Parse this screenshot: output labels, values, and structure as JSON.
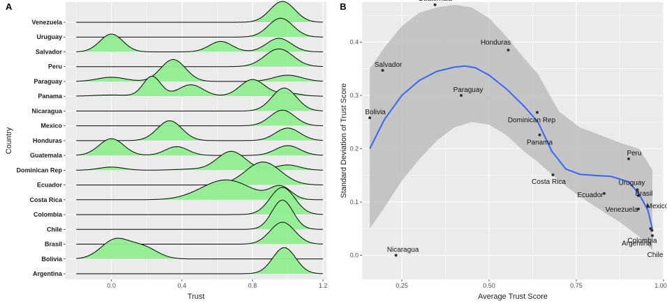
{
  "colors": {
    "panel_bg": "#ebebeb",
    "grid": "#ffffff",
    "ridge_fill": "#90ee90",
    "ridge_line": "#000000",
    "smooth_line": "#3366ff",
    "ribbon": "#bdbdbd",
    "point": "#333333"
  },
  "chart_data": [
    {
      "panel": "A",
      "type": "area",
      "subtype": "ridgeline",
      "xlabel": "Trust",
      "ylabel": "Country",
      "xlim": [
        -0.26,
        1.22
      ],
      "x_ticks": [
        0.0,
        0.4,
        0.8,
        1.2
      ],
      "x_tick_labels": [
        "0.0",
        "0.4",
        "0.8",
        "1.2"
      ],
      "support": [
        -0.2,
        1.2
      ],
      "countries": [
        {
          "name": "Venezuela",
          "peaks": [
            {
              "mu": 0.97,
              "sd": 0.07,
              "h": 1.0
            }
          ]
        },
        {
          "name": "Uruguay",
          "peaks": [
            {
              "mu": 0.96,
              "sd": 0.07,
              "h": 0.9
            }
          ]
        },
        {
          "name": "Salvador",
          "peaks": [
            {
              "mu": 0.0,
              "sd": 0.065,
              "h": 0.85
            },
            {
              "mu": 0.62,
              "sd": 0.065,
              "h": 0.5
            },
            {
              "mu": 0.95,
              "sd": 0.07,
              "h": 0.65
            }
          ]
        },
        {
          "name": "Peru",
          "peaks": [
            {
              "mu": 0.95,
              "sd": 0.08,
              "h": 0.85
            }
          ]
        },
        {
          "name": "Paraguay",
          "peaks": [
            {
              "mu": 0.0,
              "sd": 0.08,
              "h": 0.2
            },
            {
              "mu": 0.35,
              "sd": 0.07,
              "h": 1.05
            },
            {
              "mu": 1.0,
              "sd": 0.08,
              "h": 0.3
            }
          ]
        },
        {
          "name": "Panama",
          "peaks": [
            {
              "mu": 0.0,
              "sd": 0.1,
              "h": 0.06
            },
            {
              "mu": 0.23,
              "sd": 0.05,
              "h": 0.95
            },
            {
              "mu": 0.45,
              "sd": 0.07,
              "h": 0.55
            },
            {
              "mu": 0.8,
              "sd": 0.07,
              "h": 0.8
            },
            {
              "mu": 1.0,
              "sd": 0.07,
              "h": 0.15
            }
          ]
        },
        {
          "name": "Nicaragua",
          "peaks": [
            {
              "mu": 0.98,
              "sd": 0.07,
              "h": 1.1
            }
          ]
        },
        {
          "name": "Mexico",
          "peaks": [
            {
              "mu": 0.97,
              "sd": 0.07,
              "h": 0.75
            }
          ]
        },
        {
          "name": "Honduras",
          "peaks": [
            {
              "mu": 0.33,
              "sd": 0.07,
              "h": 0.95
            },
            {
              "mu": 1.0,
              "sd": 0.07,
              "h": 0.6
            }
          ]
        },
        {
          "name": "Guatemala",
          "peaks": [
            {
              "mu": 0.0,
              "sd": 0.07,
              "h": 0.8
            },
            {
              "mu": 0.37,
              "sd": 0.065,
              "h": 0.42
            },
            {
              "mu": 1.0,
              "sd": 0.07,
              "h": 0.47
            }
          ]
        },
        {
          "name": "Dominican Rep",
          "peaks": [
            {
              "mu": 0.0,
              "sd": 0.07,
              "h": 0.15
            },
            {
              "mu": 0.45,
              "sd": 0.09,
              "h": 0.05
            },
            {
              "mu": 0.68,
              "sd": 0.08,
              "h": 0.9
            },
            {
              "mu": 1.0,
              "sd": 0.07,
              "h": 0.25
            }
          ]
        },
        {
          "name": "Ecuador",
          "peaks": [
            {
              "mu": 0.86,
              "sd": 0.1,
              "h": 1.1
            }
          ]
        },
        {
          "name": "Costa Rica",
          "peaks": [
            {
              "mu": 0.65,
              "sd": 0.14,
              "h": 0.95
            },
            {
              "mu": 0.96,
              "sd": 0.06,
              "h": 0.6
            }
          ]
        },
        {
          "name": "Colombia",
          "peaks": [
            {
              "mu": 0.97,
              "sd": 0.07,
              "h": 1.3
            }
          ]
        },
        {
          "name": "Chile",
          "peaks": [
            {
              "mu": 0.97,
              "sd": 0.06,
              "h": 1.4
            }
          ]
        },
        {
          "name": "Brasil",
          "peaks": [
            {
              "mu": 0.97,
              "sd": 0.07,
              "h": 1.05
            }
          ]
        },
        {
          "name": "Bolivia",
          "peaks": [
            {
              "mu": 0.02,
              "sd": 0.08,
              "h": 0.9
            },
            {
              "mu": 0.18,
              "sd": 0.08,
              "h": 0.55
            }
          ]
        },
        {
          "name": "Argentina",
          "peaks": [
            {
              "mu": 0.98,
              "sd": 0.065,
              "h": 1.25
            }
          ]
        }
      ]
    },
    {
      "panel": "B",
      "type": "scatter",
      "xlabel": "Average Trust Score",
      "ylabel": "Standard Deviation of Trust Score",
      "xlim": [
        0.136,
        1.0
      ],
      "ylim": [
        -0.045,
        0.475
      ],
      "x_ticks": [
        0.25,
        0.5,
        0.75,
        1.0
      ],
      "x_tick_labels": [
        "0.25",
        "0.50",
        "0.75",
        "1.00"
      ],
      "y_ticks": [
        0.0,
        0.1,
        0.2,
        0.3,
        0.4
      ],
      "y_tick_labels": [
        "0.0",
        "0.1",
        "0.2",
        "0.3",
        "0.4"
      ],
      "points": [
        {
          "label": "Guatemala",
          "x": 0.345,
          "y": 0.47
        },
        {
          "label": "Honduras",
          "x": 0.555,
          "y": 0.385
        },
        {
          "label": "Salvador",
          "x": 0.195,
          "y": 0.347
        },
        {
          "label": "Paraguay",
          "x": 0.42,
          "y": 0.3
        },
        {
          "label": "Bolivia",
          "x": 0.158,
          "y": 0.258
        },
        {
          "label": "Dominican Rep",
          "x": 0.638,
          "y": 0.268
        },
        {
          "label": "Panama",
          "x": 0.645,
          "y": 0.226
        },
        {
          "label": "Peru",
          "x": 0.9,
          "y": 0.181
        },
        {
          "label": "Costa Rica",
          "x": 0.683,
          "y": 0.151
        },
        {
          "label": "Ecuador",
          "x": 0.83,
          "y": 0.116
        },
        {
          "label": "Uruguay",
          "x": 0.925,
          "y": 0.123
        },
        {
          "label": "Brasil",
          "x": 0.928,
          "y": 0.112
        },
        {
          "label": "Mexico",
          "x": 0.955,
          "y": 0.092
        },
        {
          "label": "Venezuela",
          "x": 0.928,
          "y": 0.087
        },
        {
          "label": "Colombia",
          "x": 0.963,
          "y": 0.05
        },
        {
          "label": "Argentina",
          "x": 0.967,
          "y": 0.047
        },
        {
          "label": "Chile",
          "x": 0.968,
          "y": 0.037
        },
        {
          "label": "Nicaragua",
          "x": 0.233,
          "y": 0.0
        }
      ],
      "smooth": {
        "x": [
          0.158,
          0.2,
          0.25,
          0.3,
          0.35,
          0.4,
          0.43,
          0.46,
          0.5,
          0.55,
          0.6,
          0.64,
          0.68,
          0.72,
          0.76,
          0.8,
          0.85,
          0.9,
          0.93,
          0.955,
          0.968
        ],
        "y": [
          0.2,
          0.255,
          0.3,
          0.328,
          0.345,
          0.353,
          0.355,
          0.352,
          0.338,
          0.312,
          0.28,
          0.25,
          0.195,
          0.162,
          0.152,
          0.15,
          0.148,
          0.138,
          0.115,
          0.085,
          0.05
        ],
        "lo": [
          0.15,
          0.2,
          0.25,
          0.285,
          0.3,
          0.305,
          0.305,
          0.3,
          0.285,
          0.255,
          0.215,
          0.18,
          0.14,
          0.115,
          0.105,
          0.1,
          0.085,
          0.07,
          0.055,
          0.035,
          0.01
        ],
        "hi": [
          0.25,
          0.31,
          0.352,
          0.372,
          0.395,
          0.405,
          0.408,
          0.405,
          0.392,
          0.37,
          0.345,
          0.32,
          0.25,
          0.21,
          0.2,
          0.2,
          0.21,
          0.205,
          0.175,
          0.135,
          0.09
        ]
      },
      "ribbon_lower_left": {
        "x": [
          0.158,
          0.2,
          0.25,
          0.3,
          0.35,
          0.4,
          0.45,
          0.5,
          0.55,
          0.6,
          0.64,
          0.7,
          0.76,
          0.82,
          0.88,
          0.93,
          0.968
        ],
        "y": [
          0.05,
          0.09,
          0.14,
          0.18,
          0.215,
          0.24,
          0.25,
          0.245,
          0.225,
          0.195,
          0.175,
          0.14,
          0.11,
          0.085,
          0.06,
          0.035,
          0.01
        ]
      },
      "ribbon_upper_left": {
        "x": [
          0.158,
          0.2,
          0.25,
          0.3,
          0.35,
          0.4,
          0.45,
          0.5,
          0.55,
          0.6,
          0.64,
          0.7,
          0.76,
          0.82,
          0.88,
          0.93,
          0.968
        ],
        "y": [
          0.35,
          0.39,
          0.43,
          0.455,
          0.465,
          0.47,
          0.465,
          0.445,
          0.41,
          0.37,
          0.34,
          0.27,
          0.24,
          0.225,
          0.21,
          0.2,
          0.16
        ]
      }
    }
  ]
}
